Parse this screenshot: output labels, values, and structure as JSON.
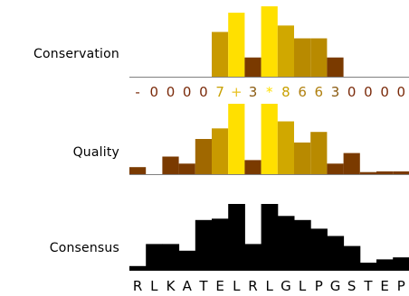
{
  "labels": {
    "conservation": "Conservation",
    "quality": "Quality",
    "consensus": "Consensus"
  },
  "colors": {
    "baseline": "#808080",
    "consensus_fill": "#000000",
    "score_low": "#800000",
    "score_high": "#ffd700"
  },
  "conservation": {
    "scores": [
      "-",
      "0",
      "0",
      "0",
      "0",
      "7",
      "+",
      "3",
      "*",
      "8",
      "6",
      "6",
      "3",
      "0",
      "0",
      "0",
      "0"
    ],
    "score_colors": [
      "#7a2a0a",
      "#7a2a0a",
      "#7a2a0a",
      "#7a2a0a",
      "#7a2a0a",
      "#c8a000",
      "#e8c020",
      "#8a5a10",
      "#ffe000",
      "#c8a000",
      "#b08010",
      "#b08010",
      "#8a5a10",
      "#7a2a0a",
      "#7a2a0a",
      "#7a2a0a",
      "#7a2a0a"
    ],
    "levels": [
      0,
      0,
      0,
      0,
      0,
      0.7,
      1.0,
      0.3,
      1.1,
      0.8,
      0.6,
      0.6,
      0.3,
      0,
      0,
      0,
      0
    ],
    "bar_colors": [
      "#7a3a00",
      "#7a3a00",
      "#7a3a00",
      "#7a3a00",
      "#7a3a00",
      "#c89a00",
      "#ffe000",
      "#7a3a00",
      "#ffe000",
      "#d0a800",
      "#b88a00",
      "#b88a00",
      "#7a3a00",
      "#7a3a00",
      "#7a3a00",
      "#7a3a00",
      "#7a3a00"
    ]
  },
  "quality": {
    "levels": [
      0.1,
      0,
      0.25,
      0.15,
      0.5,
      0.65,
      1.0,
      0.2,
      1.0,
      0.75,
      0.45,
      0.6,
      0.15,
      0.3,
      0.03,
      0.04,
      0.04
    ],
    "bar_colors": [
      "#7a3a00",
      "#7a3a00",
      "#7a3a00",
      "#7a3a00",
      "#a06800",
      "#c89a00",
      "#ffe000",
      "#7a3a00",
      "#ffe000",
      "#d0a800",
      "#b88a00",
      "#b88a00",
      "#7a3a00",
      "#7a3a00",
      "#7a3a00",
      "#7a3a00",
      "#7a3a00"
    ]
  },
  "consensus": {
    "levels": [
      0.07,
      0.4,
      0.4,
      0.3,
      0.76,
      0.78,
      1.0,
      0.4,
      1.0,
      0.82,
      0.76,
      0.63,
      0.52,
      0.37,
      0.12,
      0.17,
      0.2
    ],
    "residues": [
      "R",
      "L",
      "K",
      "A",
      "T",
      "E",
      "L",
      "R",
      "L",
      "G",
      "L",
      "P",
      "G",
      "S",
      "T",
      "E",
      "P"
    ]
  }
}
